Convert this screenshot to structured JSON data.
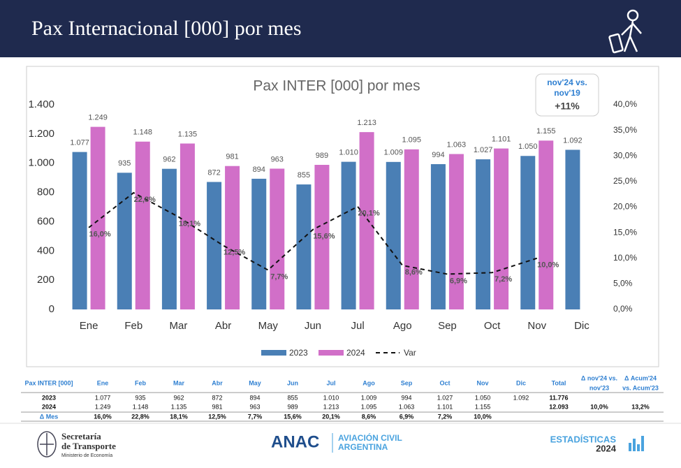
{
  "header": {
    "title": "Pax Internacional [000] por mes"
  },
  "chart_data": {
    "type": "bar",
    "title": "Pax INTER [000] por mes",
    "categories": [
      "Ene",
      "Feb",
      "Mar",
      "Abr",
      "May",
      "Jun",
      "Jul",
      "Ago",
      "Sep",
      "Oct",
      "Nov",
      "Dic"
    ],
    "series": [
      {
        "name": "2023",
        "color": "#4a7fb5",
        "values": [
          1077,
          935,
          962,
          872,
          894,
          855,
          1010,
          1009,
          994,
          1027,
          1050,
          1092
        ],
        "value_labels": [
          "1.077",
          "935",
          "962",
          "872",
          "894",
          "855",
          "1.010",
          "1.009",
          "994",
          "1.027",
          "1.050",
          "1.092"
        ]
      },
      {
        "name": "2024",
        "color": "#d16fc8",
        "values": [
          1249,
          1148,
          1135,
          981,
          963,
          989,
          1213,
          1095,
          1063,
          1101,
          1155,
          null
        ],
        "value_labels": [
          "1.249",
          "1.148",
          "1.135",
          "981",
          "963",
          "989",
          "1.213",
          "1.095",
          "1.063",
          "1.101",
          "1.155",
          null
        ]
      },
      {
        "name": "Var",
        "color": "#111111",
        "type": "line",
        "axis": "y2",
        "values": [
          16.0,
          22.8,
          18.1,
          12.5,
          7.7,
          15.6,
          20.1,
          8.6,
          6.9,
          7.2,
          10.0,
          null
        ],
        "value_labels": [
          "16,0%",
          "22,8%",
          "18,1%",
          "12,5%",
          "7,7%",
          "15,6%",
          "20,1%",
          "8,6%",
          "6,9%",
          "7,2%",
          "10,0%",
          null
        ]
      }
    ],
    "ylim": [
      0,
      1400
    ],
    "yticks": [
      0,
      200,
      400,
      600,
      800,
      {
        "value": 1000,
        "label": "1.000"
      },
      {
        "value": 1200,
        "label": "1.200"
      },
      {
        "value": 1400,
        "label": "1.400"
      }
    ],
    "y2lim": [
      0,
      40
    ],
    "y2ticks": [
      {
        "value": 0,
        "label": "0,0%"
      },
      {
        "value": 5,
        "label": "5,0%"
      },
      {
        "value": 10,
        "label": "10,0%"
      },
      {
        "value": 15,
        "label": "15,0%"
      },
      {
        "value": 20,
        "label": "20,0%"
      },
      {
        "value": 25,
        "label": "25,0%"
      },
      {
        "value": 30,
        "label": "30,0%"
      },
      {
        "value": 35,
        "label": "35,0%"
      },
      {
        "value": 40,
        "label": "40,0%"
      }
    ],
    "legend": "bottom",
    "grid": false
  },
  "callout": {
    "lines": [
      "nov'24 vs.",
      "nov'19"
    ],
    "value": "+11%"
  },
  "table": {
    "header": [
      "Pax INTER [000]",
      "Ene",
      "Feb",
      "Mar",
      "Abr",
      "May",
      "Jun",
      "Jul",
      "Ago",
      "Sep",
      "Oct",
      "Nov",
      "Dic",
      "Total"
    ],
    "delta_headers": [
      [
        "Δ nov'24 vs.",
        "nov'23"
      ],
      [
        "Δ Acum'24",
        "vs. Acum'23"
      ]
    ],
    "rows": [
      {
        "label": "2023",
        "cells": [
          "1.077",
          "935",
          "962",
          "872",
          "894",
          "855",
          "1.010",
          "1.009",
          "994",
          "1.027",
          "1.050",
          "1.092"
        ],
        "total": "11.776"
      },
      {
        "label": "2024",
        "cells": [
          "1.249",
          "1.148",
          "1.135",
          "981",
          "963",
          "989",
          "1.213",
          "1.095",
          "1.063",
          "1.101",
          "1.155"
        ],
        "total": "12.093",
        "deltas": [
          "10,0%",
          "13,2%"
        ]
      },
      {
        "label": "Δ Mes",
        "cells": [
          "16,0%",
          "22,8%",
          "18,1%",
          "12,5%",
          "7,7%",
          "15,6%",
          "20,1%",
          "8,6%",
          "6,9%",
          "7,2%",
          "10,0%"
        ]
      }
    ]
  },
  "footer": {
    "ministry": [
      "Secretaría",
      "de Transporte"
    ],
    "ministry_sub": "Ministerio de Economía",
    "anac": "ANAC",
    "anac_sub": [
      "AVIACIÓN CIVIL",
      "ARGENTINA"
    ],
    "stats": [
      "ESTADÍSTICAS",
      "2024"
    ]
  }
}
